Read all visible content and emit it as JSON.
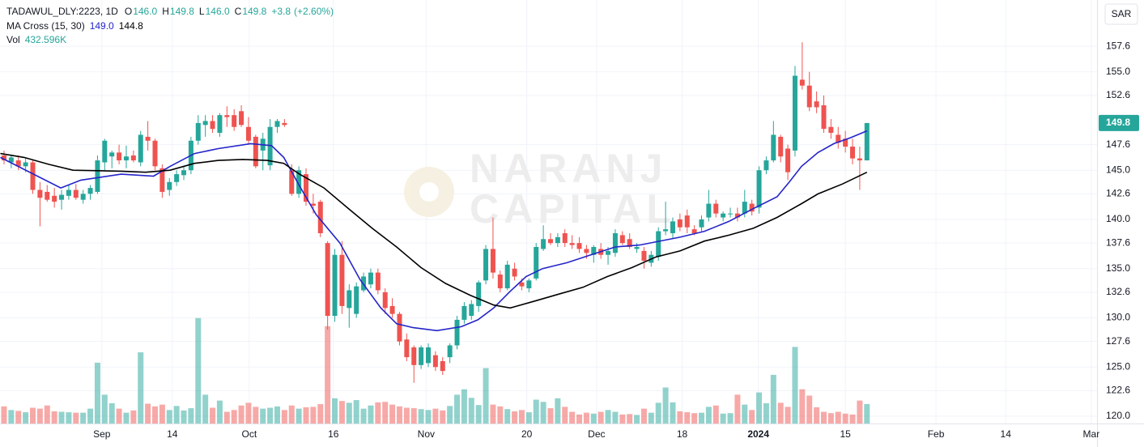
{
  "chart_data": {
    "type": "candlestick",
    "legend": {
      "symbol": "TADAWUL_DLY:2223, 1D",
      "ohlc": [
        {
          "key": "O",
          "value": 146.0,
          "label": "146.0"
        },
        {
          "key": "H",
          "value": 149.8,
          "label": "149.8"
        },
        {
          "key": "L",
          "value": 146.0,
          "label": "146.0"
        },
        {
          "key": "C",
          "value": 149.8,
          "label": "149.8"
        }
      ],
      "change": {
        "value": 3.8,
        "label": "+3.8"
      },
      "change_pct": {
        "value": 2.6,
        "label": "(+2.60%)"
      },
      "ma": {
        "name": "MA Cross (15, 30)",
        "values": [
          149.0,
          144.8
        ],
        "value_labels": [
          "149.0",
          "144.8"
        ]
      },
      "vol": {
        "name": "Vol",
        "value": 432596,
        "label": "432.596K"
      }
    },
    "watermark": [
      "NARANJ",
      "CAPITAL"
    ],
    "currency": "SAR",
    "last_price": {
      "value": 149.8,
      "label": "149.8"
    },
    "up_color": "#26a69a",
    "down_color": "#ef5350",
    "volume_up_color": "rgba(38,166,154,0.5)",
    "volume_down_color": "rgba(239,83,80,0.5)",
    "grid": true,
    "xlim": [
      -0.56,
      152
    ],
    "ylim": [
      119.26,
      162.3
    ],
    "vlim": [
      0,
      9400000
    ],
    "xticks": [
      {
        "value": 13.6,
        "label": "Sep"
      },
      {
        "value": 23.4,
        "label": "14"
      },
      {
        "value": 34.1,
        "label": "Oct"
      },
      {
        "value": 45.8,
        "label": "16"
      },
      {
        "value": 58.7,
        "label": "Nov"
      },
      {
        "value": 72.7,
        "label": "20"
      },
      {
        "value": 82.4,
        "label": "Dec"
      },
      {
        "value": 94.3,
        "label": "18"
      },
      {
        "value": 104.9,
        "label": "2024"
      },
      {
        "value": 117.0,
        "label": "15"
      },
      {
        "value": 129.6,
        "label": "Feb"
      },
      {
        "value": 139.3,
        "label": "14"
      },
      {
        "value": 151.2,
        "label": "Mar"
      }
    ],
    "yticks": [
      {
        "value": 120.0,
        "label": "120.0"
      },
      {
        "value": 122.6,
        "label": "122.6"
      },
      {
        "value": 125.0,
        "label": "125.0"
      },
      {
        "value": 127.6,
        "label": "127.6"
      },
      {
        "value": 130.0,
        "label": "130.0"
      },
      {
        "value": 132.6,
        "label": "132.6"
      },
      {
        "value": 135.0,
        "label": "135.0"
      },
      {
        "value": 137.6,
        "label": "137.6"
      },
      {
        "value": 140.0,
        "label": "140.0"
      },
      {
        "value": 142.6,
        "label": "142.6"
      },
      {
        "value": 145.0,
        "label": "145.0"
      },
      {
        "value": 147.6,
        "label": "147.6"
      },
      {
        "value": 152.6,
        "label": "152.6"
      },
      {
        "value": 155.0,
        "label": "155.0"
      },
      {
        "value": 157.6,
        "label": "157.6"
      }
    ],
    "x": [
      0,
      1,
      2,
      3,
      4,
      5,
      6,
      7,
      8,
      9,
      10,
      11,
      12,
      13,
      14,
      15,
      16,
      17,
      18,
      19,
      20,
      21,
      22,
      23,
      24,
      25,
      26,
      27,
      28,
      29,
      30,
      31,
      32,
      33,
      34,
      35,
      36,
      37,
      38,
      39,
      40,
      41,
      42,
      43,
      44,
      45,
      46,
      47,
      48,
      49,
      50,
      51,
      52,
      53,
      54,
      55,
      56,
      57,
      58,
      59,
      60,
      61,
      62,
      63,
      64,
      65,
      66,
      67,
      68,
      69,
      70,
      71,
      72,
      73,
      74,
      75,
      76,
      77,
      78,
      79,
      80,
      81,
      82,
      83,
      84,
      85,
      86,
      87,
      88,
      89,
      90,
      91,
      92,
      93,
      94,
      95,
      96,
      97,
      98,
      99,
      100,
      101,
      102,
      103,
      104,
      105,
      106,
      107,
      108,
      109,
      110,
      111,
      112,
      113,
      114,
      115,
      116,
      117,
      118,
      119,
      120
    ],
    "open": [
      146.5,
      145.8,
      146.0,
      145.4,
      145.8,
      143.0,
      142.8,
      142.4,
      142.0,
      142.4,
      143.0,
      142.0,
      142.6,
      142.8,
      145.8,
      146.4,
      146.8,
      146.0,
      146.5,
      145.8,
      148.4,
      148.0,
      145.2,
      143.0,
      143.8,
      144.5,
      145.0,
      148.0,
      149.6,
      150.0,
      148.8,
      150.6,
      150.6,
      151.0,
      149.4,
      148.4,
      147.0,
      145.5,
      149.4,
      149.8,
      145.0,
      142.6,
      144.6,
      141.6,
      141.8,
      137.6,
      130.2,
      136.4,
      131.0,
      130.4,
      132.8,
      133.4,
      134.6,
      132.6,
      131.2,
      130.4,
      127.8,
      127.0,
      125.2,
      125.4,
      126.2,
      125.6,
      126.0,
      127.2,
      129.8,
      130.2,
      131.2,
      133.8,
      137.0,
      134.4,
      133.0,
      135.0,
      133.6,
      133.0,
      134.0,
      137.0,
      138.0,
      137.6,
      138.6,
      137.6,
      137.6,
      137.0,
      136.4,
      137.0,
      136.4,
      136.6,
      138.4,
      138.0,
      137.0,
      136.8,
      135.6,
      136.2,
      138.8,
      138.6,
      140.0,
      140.4,
      139.0,
      139.2,
      140.2,
      141.6,
      140.2,
      140.6,
      140.6,
      140.6,
      141.6,
      141.2,
      145.0,
      146.0,
      148.4,
      147.2,
      147.0,
      154.2,
      153.6,
      152.0,
      151.6,
      149.4,
      148.6,
      148.2,
      147.4,
      146.2,
      146.0
    ],
    "high": [
      147.0,
      146.6,
      146.5,
      146.3,
      146.0,
      143.8,
      143.5,
      143.2,
      143.0,
      143.5,
      143.6,
      143.0,
      143.5,
      146.5,
      148.2,
      147.0,
      147.6,
      147.5,
      147.0,
      149.0,
      150.0,
      148.2,
      145.6,
      144.2,
      145.0,
      145.4,
      148.4,
      150.6,
      150.6,
      150.6,
      150.8,
      151.5,
      151.2,
      151.6,
      150.4,
      148.6,
      148.8,
      150.2,
      150.2,
      150.2,
      145.6,
      145.4,
      145.2,
      142.6,
      142.0,
      137.8,
      137.0,
      137.8,
      133.4,
      133.6,
      134.6,
      135.0,
      135.0,
      133.0,
      132.0,
      130.6,
      128.4,
      127.2,
      127.2,
      127.4,
      126.6,
      126.0,
      127.4,
      130.2,
      131.6,
      131.8,
      133.8,
      137.4,
      140.2,
      134.8,
      135.8,
      135.6,
      134.0,
      134.0,
      137.6,
      139.4,
      138.6,
      138.6,
      139.0,
      138.4,
      138.2,
      137.4,
      137.4,
      137.6,
      137.2,
      139.0,
      138.8,
      138.6,
      137.6,
      137.2,
      136.8,
      139.2,
      141.8,
      140.2,
      140.6,
      141.0,
      139.4,
      140.4,
      143.0,
      142.0,
      140.8,
      141.2,
      141.2,
      143.0,
      142.0,
      145.4,
      146.4,
      150.0,
      148.6,
      147.6,
      155.6,
      158.0,
      155.0,
      153.0,
      152.6,
      150.2,
      149.4,
      149.0,
      148.2,
      147.4,
      149.8
    ],
    "low": [
      145.6,
      145.2,
      145.0,
      144.8,
      142.6,
      139.3,
      141.8,
      141.2,
      141.0,
      142.0,
      142.0,
      141.6,
      142.0,
      142.6,
      145.0,
      145.2,
      145.6,
      145.2,
      145.8,
      145.4,
      147.0,
      145.0,
      142.2,
      142.4,
      143.4,
      144.0,
      144.6,
      147.6,
      148.4,
      148.8,
      148.4,
      149.4,
      149.0,
      149.4,
      147.6,
      145.2,
      145.0,
      145.0,
      148.8,
      149.4,
      142.4,
      142.2,
      141.4,
      140.6,
      138.2,
      128.8,
      129.6,
      130.4,
      129.0,
      130.0,
      132.6,
      133.0,
      132.4,
      130.4,
      130.0,
      127.2,
      125.6,
      123.4,
      124.8,
      125.0,
      124.6,
      124.2,
      125.4,
      126.8,
      129.4,
      129.8,
      130.6,
      133.4,
      134.0,
      132.6,
      132.8,
      133.8,
      132.8,
      132.6,
      133.8,
      136.8,
      137.4,
      137.2,
      137.2,
      137.0,
      136.6,
      136.0,
      135.6,
      136.0,
      135.4,
      136.2,
      137.4,
      137.0,
      136.6,
      135.0,
      135.2,
      135.8,
      138.4,
      138.0,
      138.8,
      138.6,
      138.4,
      138.8,
      139.8,
      140.2,
      139.8,
      140.2,
      139.8,
      140.2,
      140.4,
      140.6,
      144.6,
      145.8,
      145.8,
      144.0,
      146.4,
      153.2,
      151.0,
      150.8,
      148.8,
      148.2,
      147.2,
      146.8,
      145.6,
      143.0,
      146.0
    ],
    "close": [
      146.0,
      146.3,
      145.4,
      145.8,
      143.0,
      142.2,
      142.0,
      141.8,
      142.5,
      143.0,
      142.2,
      142.6,
      143.2,
      146.0,
      148.0,
      146.8,
      146.0,
      146.4,
      146.0,
      148.6,
      148.0,
      145.4,
      142.8,
      143.8,
      144.6,
      145.0,
      148.0,
      149.8,
      150.0,
      149.2,
      150.6,
      150.4,
      149.4,
      149.6,
      148.0,
      145.4,
      148.2,
      149.4,
      150.0,
      149.6,
      142.6,
      145.0,
      141.8,
      141.4,
      138.6,
      130.2,
      136.4,
      131.2,
      132.8,
      133.2,
      134.2,
      134.6,
      132.8,
      131.0,
      130.4,
      127.6,
      126.0,
      125.2,
      127.0,
      127.0,
      125.0,
      124.6,
      127.2,
      129.8,
      131.2,
      131.4,
      133.6,
      137.0,
      134.6,
      133.0,
      135.4,
      134.2,
      133.2,
      133.8,
      137.2,
      138.0,
      137.6,
      138.2,
      137.6,
      137.4,
      137.0,
      136.6,
      137.2,
      136.4,
      136.8,
      138.6,
      137.6,
      137.2,
      137.2,
      135.8,
      136.4,
      138.8,
      139.0,
      139.8,
      139.2,
      139.2,
      138.6,
      140.0,
      141.6,
      140.6,
      140.6,
      140.6,
      140.2,
      141.8,
      140.8,
      145.0,
      146.0,
      148.6,
      146.4,
      144.8,
      154.6,
      153.6,
      151.4,
      151.4,
      149.2,
      148.8,
      147.8,
      147.4,
      146.2,
      146.0,
      149.8
    ],
    "volume": [
      380000,
      300000,
      280000,
      250000,
      350000,
      330000,
      400000,
      270000,
      260000,
      250000,
      240000,
      240000,
      330000,
      1350000,
      640000,
      450000,
      330000,
      240000,
      290000,
      1580000,
      440000,
      380000,
      420000,
      300000,
      390000,
      290000,
      340000,
      2340000,
      640000,
      350000,
      510000,
      260000,
      300000,
      400000,
      460000,
      370000,
      330000,
      350000,
      380000,
      300000,
      400000,
      330000,
      360000,
      370000,
      430000,
      2160000,
      560000,
      500000,
      460000,
      520000,
      330000,
      400000,
      470000,
      480000,
      420000,
      380000,
      350000,
      340000,
      320000,
      300000,
      330000,
      290000,
      390000,
      640000,
      760000,
      570000,
      410000,
      1230000,
      420000,
      380000,
      320000,
      270000,
      300000,
      250000,
      530000,
      480000,
      340000,
      560000,
      370000,
      260000,
      200000,
      240000,
      220000,
      260000,
      300000,
      260000,
      200000,
      210000,
      190000,
      330000,
      240000,
      460000,
      800000,
      470000,
      270000,
      250000,
      230000,
      240000,
      370000,
      400000,
      220000,
      230000,
      640000,
      420000,
      300000,
      690000,
      450000,
      1080000,
      460000,
      370000,
      1700000,
      760000,
      620000,
      360000,
      260000,
      230000,
      260000,
      220000,
      200000,
      510000,
      432596
    ],
    "ma_lines": [
      {
        "color": "#2424c9",
        "x": [
          -0.5,
          7.9,
          10.7,
          16.3,
          20.8,
          23.1,
          26.5,
          29.8,
          34.3,
          37.2,
          38.9,
          41.1,
          43.4,
          46.7,
          49.5,
          52.4,
          54.6,
          56.9,
          60.2,
          63.6,
          65.9,
          68.1,
          70.4,
          72.6,
          74.9,
          78.3,
          81.6,
          85.0,
          88.4,
          94.0,
          97.4,
          100.8,
          104.2,
          107.5,
          109.2,
          110.9,
          113.2,
          115.4,
          117.7,
          120
        ],
        "values": [
          146.3,
          143.2,
          144.0,
          144.6,
          144.4,
          145.4,
          146.7,
          147.2,
          147.7,
          147.5,
          146.3,
          143.4,
          140.5,
          137.6,
          133.9,
          131.0,
          129.4,
          129.0,
          128.7,
          129.1,
          129.8,
          131.0,
          132.7,
          134.2,
          135.0,
          135.6,
          136.4,
          137.2,
          137.4,
          138.2,
          138.8,
          139.8,
          141.1,
          142.3,
          143.8,
          145.4,
          146.8,
          147.7,
          148.3,
          149.0
        ]
      },
      {
        "color": "#000000",
        "x": [
          -0.5,
          2.8,
          6.2,
          9.6,
          16.3,
          19.7,
          23.1,
          26.5,
          29.8,
          33.2,
          36.6,
          38.9,
          41.1,
          44.5,
          47.9,
          51.2,
          54.6,
          58.0,
          61.4,
          64.8,
          68.1,
          70.4,
          73.8,
          77.1,
          80.5,
          83.9,
          87.3,
          90.7,
          94.0,
          97.4,
          100.8,
          104.2,
          107.5,
          110.9,
          113.2,
          116.6,
          120
        ],
        "values": [
          146.7,
          146.3,
          145.6,
          145.0,
          144.9,
          144.8,
          145.0,
          145.7,
          146.0,
          146.1,
          146.0,
          145.7,
          144.6,
          143.2,
          141.1,
          139.1,
          137.2,
          135.1,
          133.5,
          132.3,
          131.3,
          131.0,
          131.7,
          132.4,
          133.1,
          134.2,
          135.1,
          136.2,
          136.8,
          137.8,
          138.4,
          139.1,
          140.2,
          141.6,
          142.6,
          143.6,
          144.8
        ]
      }
    ]
  }
}
